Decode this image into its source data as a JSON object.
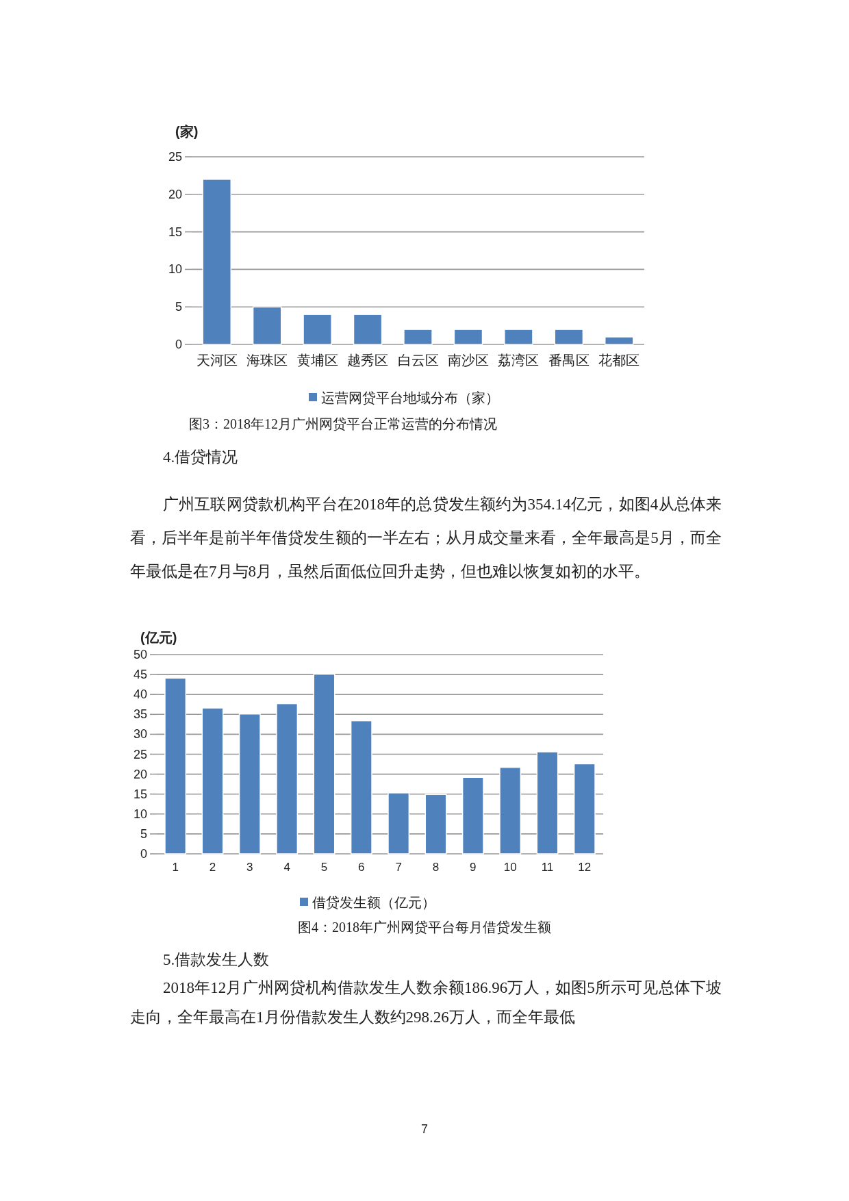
{
  "chart_data": [
    {
      "type": "bar",
      "title": "图3：2018年12月广州网贷平台正常运营的分布情况",
      "ylabel": "(家)",
      "categories": [
        "天河区",
        "海珠区",
        "黄埔区",
        "越秀区",
        "白云区",
        "南沙区",
        "荔湾区",
        "番禺区",
        "花都区"
      ],
      "series": [
        {
          "name": "运营网贷平台地域分布（家）",
          "color": "#4f81bd",
          "values": [
            22,
            5,
            4,
            4,
            2,
            2,
            2,
            2,
            1
          ]
        }
      ],
      "ylim": [
        0,
        25
      ],
      "yticks": [
        0,
        5,
        10,
        15,
        20,
        25
      ],
      "grid": "y",
      "legend": "bottom",
      "annotations": [
        "4.借贷情况",
        "广州互联网贷款机构平台在2018年的总贷发生额约为354.14亿元，如图4从总体来看，后半年是前半年借贷发生额的一半左右；从月成交量来看，全年最高是5月，而全年最低是在7月与8月，虽然后面低位回升走势，但也难以恢复如初的水平。"
      ]
    },
    {
      "type": "bar",
      "title": "图4：2018年广州网贷平台每月借贷发生额",
      "ylabel": "(亿元)",
      "categories": [
        "1",
        "2",
        "3",
        "4",
        "5",
        "6",
        "7",
        "8",
        "9",
        "10",
        "11",
        "12"
      ],
      "series": [
        {
          "name": "借贷发生额（亿元）",
          "color": "#4f81bd",
          "values": [
            44.1,
            36.6,
            35.1,
            37.7,
            45.1,
            33.4,
            15.3,
            14.9,
            19.2,
            21.7,
            25.6,
            22.6
          ]
        }
      ],
      "ylim": [
        0,
        50
      ],
      "yticks": [
        0,
        5,
        10,
        15,
        20,
        25,
        30,
        35,
        40,
        45,
        50
      ],
      "grid": "y",
      "legend": "bottom",
      "annotations": [
        "5.借款发生人数",
        "2018年12月广州网贷机构借款发生人数余额186.96万人，如图5所示可见总体下坡走向，全年最高在1月份借款发生人数约298.26万人，而全年最低",
        "7"
      ]
    }
  ]
}
